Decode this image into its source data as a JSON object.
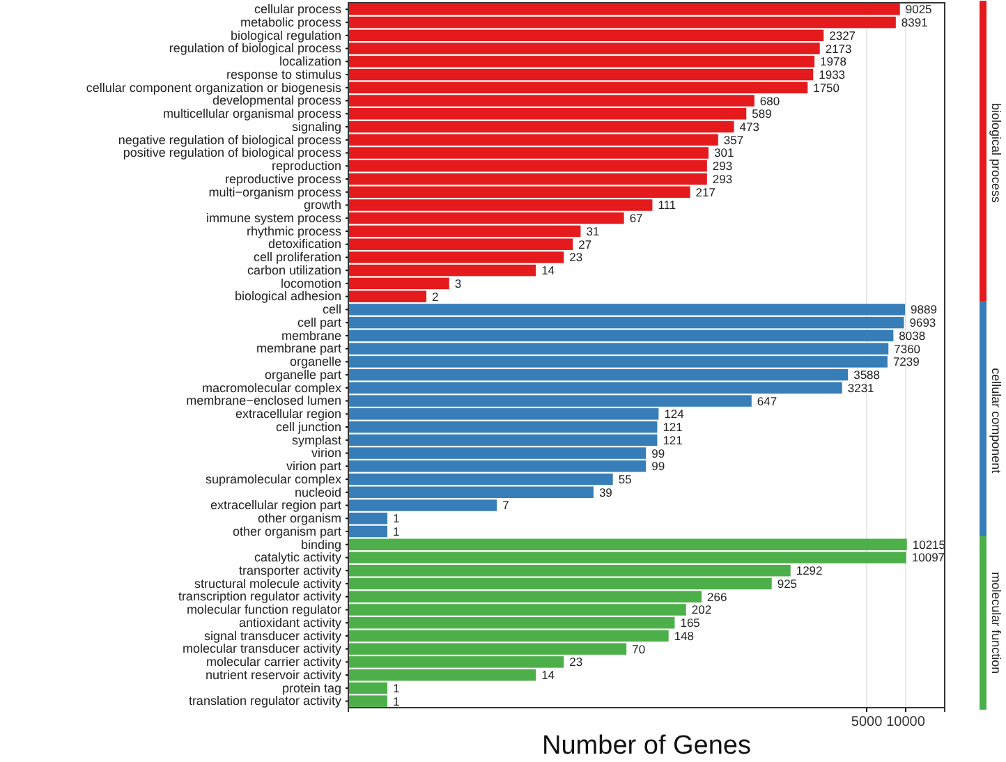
{
  "chart_data": {
    "type": "bar",
    "orientation": "horizontal",
    "xlabel": "Number of Genes",
    "log": "x",
    "xlim": [
      0.5,
      20000
    ],
    "xticks": [
      5000,
      10000
    ],
    "grid": "x",
    "legend": "right",
    "data_labels": true,
    "categories": [
      "cellular process",
      "metabolic process",
      "biological regulation",
      "regulation of biological process",
      "localization",
      "response to stimulus",
      "cellular component organization or biogenesis",
      "developmental process",
      "multicellular organismal process",
      "signaling",
      "negative regulation of biological process",
      "positive regulation of biological process",
      "reproduction",
      "reproductive process",
      "multi−organism process",
      "growth",
      "immune system process",
      "rhythmic process",
      "detoxification",
      "cell proliferation",
      "carbon utilization",
      "locomotion",
      "biological adhesion",
      "cell",
      "cell part",
      "membrane",
      "membrane part",
      "organelle",
      "organelle part",
      "macromolecular complex",
      "membrane−enclosed lumen",
      "extracellular region",
      "cell junction",
      "symplast",
      "virion",
      "virion part",
      "supramolecular complex",
      "nucleoid",
      "extracellular region part",
      "other organism",
      "other organism part",
      "binding",
      "catalytic activity",
      "transporter activity",
      "structural molecule activity",
      "transcription regulator activity",
      "molecular function regulator",
      "antioxidant activity",
      "signal transducer activity",
      "molecular transducer activity",
      "molecular carrier activity",
      "nutrient reservoir activity",
      "protein tag",
      "translation regulator activity"
    ],
    "series": [
      {
        "name": "biological process",
        "color": "#e41a1c",
        "values": [
          9025,
          8391,
          2327,
          2173,
          1978,
          1933,
          1750,
          680,
          589,
          473,
          357,
          301,
          293,
          293,
          217,
          111,
          67,
          31,
          27,
          23,
          14,
          3,
          2,
          null,
          null,
          null,
          null,
          null,
          null,
          null,
          null,
          null,
          null,
          null,
          null,
          null,
          null,
          null,
          null,
          null,
          null,
          null,
          null,
          null,
          null,
          null,
          null,
          null,
          null,
          null,
          null,
          null,
          null,
          null
        ]
      },
      {
        "name": "cellular component",
        "color": "#377eb8",
        "values": [
          null,
          null,
          null,
          null,
          null,
          null,
          null,
          null,
          null,
          null,
          null,
          null,
          null,
          null,
          null,
          null,
          null,
          null,
          null,
          null,
          null,
          null,
          null,
          9889,
          9693,
          8038,
          7360,
          7239,
          3588,
          3231,
          647,
          124,
          121,
          121,
          99,
          99,
          55,
          39,
          7,
          1,
          1,
          null,
          null,
          null,
          null,
          null,
          null,
          null,
          null,
          null,
          null,
          null,
          null,
          null
        ]
      },
      {
        "name": "molecular function",
        "color": "#4daf4a",
        "values": [
          null,
          null,
          null,
          null,
          null,
          null,
          null,
          null,
          null,
          null,
          null,
          null,
          null,
          null,
          null,
          null,
          null,
          null,
          null,
          null,
          null,
          null,
          null,
          null,
          null,
          null,
          null,
          null,
          null,
          null,
          null,
          null,
          null,
          null,
          null,
          null,
          null,
          null,
          null,
          null,
          null,
          10215,
          10097,
          1292,
          925,
          266,
          202,
          165,
          148,
          70,
          23,
          14,
          1,
          1
        ]
      }
    ]
  }
}
